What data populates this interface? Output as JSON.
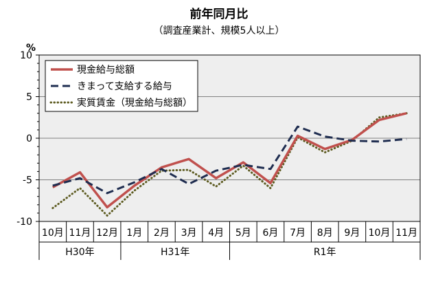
{
  "chart_data": {
    "type": "line",
    "title": "前年同月比",
    "subtitle": "（調査産業計、規模5人以上）",
    "ylabel": "%",
    "ylim": [
      -10,
      10
    ],
    "yticks": [
      10,
      5,
      0,
      -5,
      -10
    ],
    "grid": true,
    "legend_position": "top-left",
    "categories": [
      "10月",
      "11月",
      "12月",
      "1月",
      "2月",
      "3月",
      "4月",
      "5月",
      "6月",
      "7月",
      "8月",
      "9月",
      "10月",
      "11月"
    ],
    "year_groups": [
      {
        "label": "H30年",
        "start": 0,
        "end": 2
      },
      {
        "label": "H31年",
        "start": 3,
        "end": 6
      },
      {
        "label": "R1年",
        "start": 7,
        "end": 13
      }
    ],
    "series": [
      {
        "name": "現金給与総額",
        "color": "#c0504d",
        "style": "solid",
        "values": [
          -5.9,
          -4.1,
          -8.3,
          -5.7,
          -3.5,
          -2.5,
          -4.8,
          -2.9,
          -5.4,
          0.3,
          -1.3,
          -0.2,
          2.2,
          3.0
        ]
      },
      {
        "name": "きまって支給する給与",
        "color": "#1f2d50",
        "style": "dashed",
        "values": [
          -5.7,
          -4.8,
          -6.6,
          -5.3,
          -3.7,
          -5.5,
          -3.9,
          -3.2,
          -3.7,
          1.4,
          0.2,
          -0.3,
          -0.4,
          -0.1
        ]
      },
      {
        "name": "実質賃金（現金給与総額）",
        "color": "#5e5c22",
        "style": "dotted",
        "values": [
          -8.4,
          -6.0,
          -9.3,
          -6.3,
          -3.9,
          -3.8,
          -5.8,
          -3.3,
          -6.0,
          0.1,
          -1.7,
          -0.3,
          2.5,
          3.0
        ]
      }
    ]
  }
}
